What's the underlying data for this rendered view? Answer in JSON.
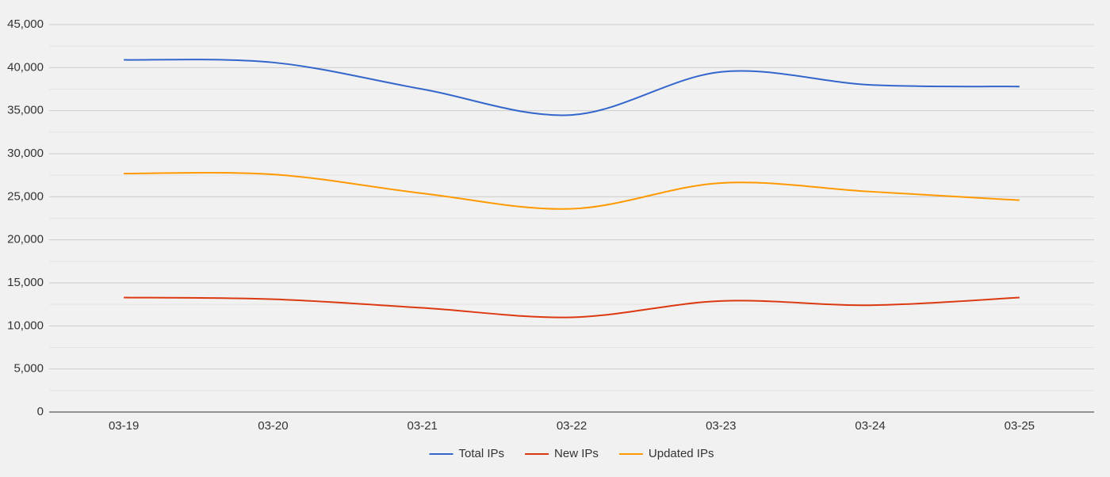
{
  "chart_data": {
    "type": "line",
    "categories": [
      "03-19",
      "03-20",
      "03-21",
      "03-22",
      "03-23",
      "03-24",
      "03-25"
    ],
    "series": [
      {
        "name": "Total IPs",
        "color": "#3366cc",
        "values": [
          40900,
          40600,
          37500,
          34500,
          39500,
          38000,
          37800
        ]
      },
      {
        "name": "New IPs",
        "color": "#dc3912",
        "values": [
          13300,
          13100,
          12100,
          11000,
          12900,
          12400,
          13300
        ]
      },
      {
        "name": "Updated IPs",
        "color": "#ff9900",
        "values": [
          27700,
          27600,
          25400,
          23600,
          26600,
          25600,
          24600
        ]
      }
    ],
    "ylim": [
      0,
      45000
    ],
    "yticks": [
      0,
      {
        "value": 5000,
        "label": "5,000"
      },
      {
        "value": 10000,
        "label": "10,000"
      },
      {
        "value": 15000,
        "label": "15,000"
      },
      {
        "value": 20000,
        "label": "20,000"
      },
      {
        "value": 25000,
        "label": "25,000"
      },
      {
        "value": 30000,
        "label": "30,000"
      },
      {
        "value": 35000,
        "label": "35,000"
      },
      {
        "value": 40000,
        "label": "40,000"
      },
      {
        "value": 45000,
        "label": "45,000"
      }
    ],
    "grid": true,
    "smooth": true,
    "legend": "bottom"
  }
}
